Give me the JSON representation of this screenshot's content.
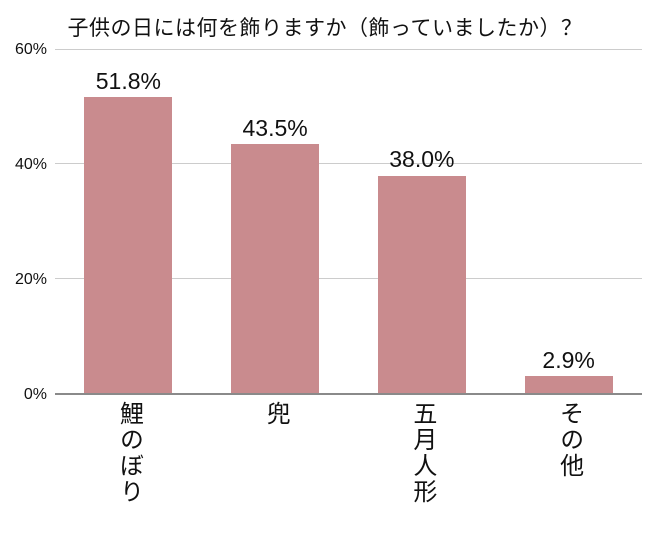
{
  "chart_data": {
    "type": "bar",
    "title": "子供の日には何を飾りますか（飾っていましたか）？",
    "categories": [
      "鯉のぼり",
      "兜",
      "五月人形",
      "その他"
    ],
    "values": [
      51.8,
      43.5,
      38.0,
      2.9
    ],
    "value_labels": [
      "51.8%",
      "43.5%",
      "38.0%",
      "2.9%"
    ],
    "ylim": [
      0,
      60
    ],
    "yticks": [
      0,
      20,
      40,
      60
    ],
    "ytick_labels": [
      "0%",
      "20%",
      "40%",
      "60%"
    ],
    "grid": true,
    "legend": "none",
    "colors": {
      "bar": "#c98b8e",
      "gridline": "#cccccc",
      "axis": "#8a8a8a",
      "text": "#111111",
      "background": "#ffffff"
    }
  }
}
